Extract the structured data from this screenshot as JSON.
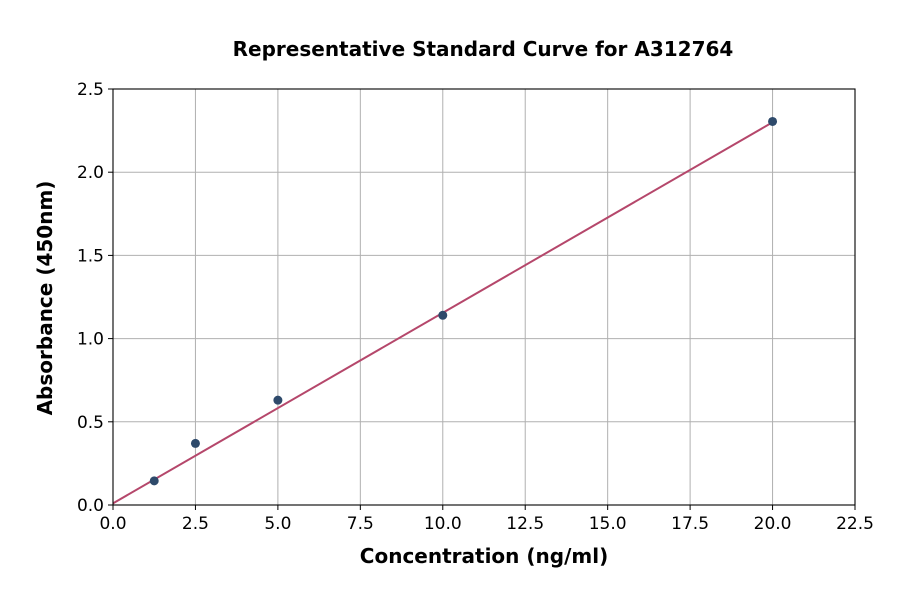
{
  "chart_data": {
    "type": "scatter",
    "title": "Representative Standard Curve for A312764",
    "xlabel": "Concentration (ng/ml)",
    "ylabel": "Absorbance (450nm)",
    "xlim": [
      0,
      22.5
    ],
    "ylim": [
      0,
      2.5
    ],
    "x_ticks": [
      "0.0",
      "2.5",
      "5.0",
      "7.5",
      "10.0",
      "12.5",
      "15.0",
      "17.5",
      "20.0",
      "22.5"
    ],
    "y_ticks": [
      "0.0",
      "0.5",
      "1.0",
      "1.5",
      "2.0",
      "2.5"
    ],
    "grid": true,
    "series": [
      {
        "kind": "points",
        "color": "#2e4a6b",
        "x": [
          1.25,
          2.5,
          5.0,
          10.0,
          20.0
        ],
        "y": [
          0.145,
          0.37,
          0.63,
          1.14,
          2.305
        ]
      },
      {
        "kind": "fit-line",
        "color": "#b5476b",
        "x": [
          0,
          20.0
        ],
        "y": [
          0.01,
          2.3
        ]
      }
    ]
  }
}
